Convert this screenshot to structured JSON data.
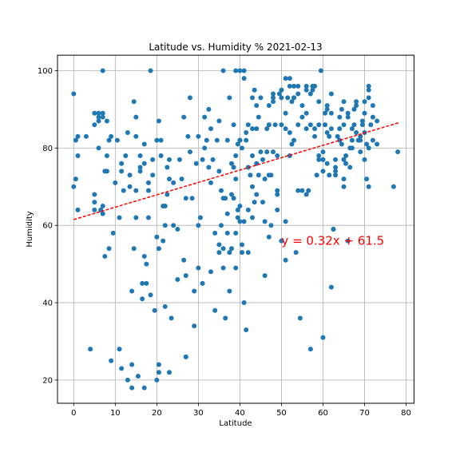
{
  "chart_data": {
    "type": "scatter",
    "title": "Latitude vs. Humidity % 2021-02-13",
    "xlabel": "Latitude",
    "ylabel": "Humidity",
    "xlim": [
      -3.9,
      81.9
    ],
    "ylim": [
      14,
      104
    ],
    "xticks": [
      0,
      10,
      20,
      30,
      40,
      50,
      60,
      70,
      80
    ],
    "yticks": [
      20,
      40,
      60,
      80,
      100
    ],
    "grid": true,
    "colors": {
      "points": "#1f77b4",
      "regression": "#ff0000",
      "annotation": "#ff0000"
    },
    "regression": {
      "slope": 0.32,
      "intercept": 61.5,
      "x_range": [
        0,
        78.2
      ],
      "style": "dashed"
    },
    "annotation": {
      "text": "y = 0.32x + 61.5",
      "x": 50,
      "y": 55
    },
    "points": [
      [
        0,
        94
      ],
      [
        0,
        70
      ],
      [
        0.5,
        72
      ],
      [
        0.5,
        82
      ],
      [
        1,
        64
      ],
      [
        1,
        78
      ],
      [
        1,
        83
      ],
      [
        3,
        83
      ],
      [
        4,
        28
      ],
      [
        5,
        64
      ],
      [
        5,
        66
      ],
      [
        5,
        68
      ],
      [
        5,
        89
      ],
      [
        5,
        86
      ],
      [
        6,
        88
      ],
      [
        6,
        87
      ],
      [
        6,
        80
      ],
      [
        6,
        89
      ],
      [
        7,
        89
      ],
      [
        7,
        88
      ],
      [
        6.5,
        64
      ],
      [
        7,
        65
      ],
      [
        7,
        63
      ],
      [
        7,
        100
      ],
      [
        7.5,
        74
      ],
      [
        7.5,
        52
      ],
      [
        8,
        74
      ],
      [
        8,
        87
      ],
      [
        8,
        78
      ],
      [
        8.5,
        82
      ],
      [
        8.5,
        54
      ],
      [
        9,
        25
      ],
      [
        9,
        83
      ],
      [
        9.5,
        58
      ],
      [
        10,
        71
      ],
      [
        10.5,
        82
      ],
      [
        11,
        28
      ],
      [
        11,
        62
      ],
      [
        11.5,
        23
      ],
      [
        11.5,
        74
      ],
      [
        11.5,
        76
      ],
      [
        12,
        69
      ],
      [
        12.5,
        78
      ],
      [
        13,
        84
      ],
      [
        13,
        20
      ],
      [
        13.5,
        73
      ],
      [
        13.5,
        70
      ],
      [
        14,
        43
      ],
      [
        14,
        18
      ],
      [
        14,
        24
      ],
      [
        14.5,
        54
      ],
      [
        14.5,
        92
      ],
      [
        15,
        88
      ],
      [
        15,
        83
      ],
      [
        15,
        69
      ],
      [
        15,
        62
      ],
      [
        15.5,
        21
      ],
      [
        16,
        74
      ],
      [
        16,
        78
      ],
      [
        16,
        75
      ],
      [
        16.5,
        45
      ],
      [
        16.5,
        41
      ],
      [
        17,
        18
      ],
      [
        17,
        81
      ],
      [
        17,
        76
      ],
      [
        17,
        52
      ],
      [
        17.5,
        50
      ],
      [
        17.5,
        45
      ],
      [
        18,
        71
      ],
      [
        18,
        69
      ],
      [
        18,
        62
      ],
      [
        18.5,
        42
      ],
      [
        18.5,
        100
      ],
      [
        19,
        77
      ],
      [
        19,
        73
      ],
      [
        19.5,
        38
      ],
      [
        20,
        57
      ],
      [
        20,
        20
      ],
      [
        20,
        82
      ],
      [
        20.5,
        22
      ],
      [
        20.5,
        24
      ],
      [
        20.5,
        54
      ],
      [
        20.5,
        87
      ],
      [
        21,
        82
      ],
      [
        21,
        78
      ],
      [
        21.5,
        65
      ],
      [
        21.5,
        56
      ],
      [
        22,
        39
      ],
      [
        22,
        65
      ],
      [
        22,
        60
      ],
      [
        22.5,
        75
      ],
      [
        22.5,
        68
      ],
      [
        23,
        22
      ],
      [
        23,
        77
      ],
      [
        23,
        72
      ],
      [
        23.5,
        36
      ],
      [
        24,
        60
      ],
      [
        24,
        71
      ],
      [
        25,
        46
      ],
      [
        25,
        59
      ],
      [
        25.5,
        77
      ],
      [
        26,
        72
      ],
      [
        26.5,
        88
      ],
      [
        26.5,
        51
      ],
      [
        27,
        47
      ],
      [
        27,
        67
      ],
      [
        27,
        26
      ],
      [
        27,
        26
      ],
      [
        27.5,
        83
      ],
      [
        28,
        93
      ],
      [
        28,
        79
      ],
      [
        28.5,
        67
      ],
      [
        29,
        43
      ],
      [
        29,
        34
      ],
      [
        29.5,
        76
      ],
      [
        30,
        83
      ],
      [
        30,
        60
      ],
      [
        30,
        49
      ],
      [
        30.5,
        62
      ],
      [
        31,
        77
      ],
      [
        31,
        45
      ],
      [
        31.5,
        88
      ],
      [
        31.5,
        80
      ],
      [
        32,
        82
      ],
      [
        32.5,
        90
      ],
      [
        32.5,
        75
      ],
      [
        33,
        71
      ],
      [
        33,
        85
      ],
      [
        33,
        48
      ],
      [
        33.5,
        77
      ],
      [
        34,
        38
      ],
      [
        34,
        58
      ],
      [
        34.5,
        82
      ],
      [
        35,
        87
      ],
      [
        35,
        53
      ],
      [
        35,
        74
      ],
      [
        35,
        55
      ],
      [
        35.5,
        69
      ],
      [
        35.5,
        60
      ],
      [
        36,
        67
      ],
      [
        36,
        54
      ],
      [
        36,
        49
      ],
      [
        36,
        100
      ],
      [
        36.5,
        36
      ],
      [
        36.5,
        67
      ],
      [
        37,
        82
      ],
      [
        37,
        63
      ],
      [
        37,
        58
      ],
      [
        37.5,
        93
      ],
      [
        37.5,
        53
      ],
      [
        37.5,
        43
      ],
      [
        38,
        76
      ],
      [
        38,
        68
      ],
      [
        38,
        54
      ],
      [
        38.5,
        86
      ],
      [
        38.5,
        75
      ],
      [
        38.5,
        67
      ],
      [
        39,
        58
      ],
      [
        39,
        72
      ],
      [
        39,
        100
      ],
      [
        39,
        49
      ],
      [
        39,
        78
      ],
      [
        39.5,
        64
      ],
      [
        39.5,
        62
      ],
      [
        39.5,
        81
      ],
      [
        40,
        82
      ],
      [
        40,
        65
      ],
      [
        40,
        100
      ],
      [
        40,
        82
      ],
      [
        40,
        61
      ],
      [
        40.5,
        55
      ],
      [
        40.5,
        53
      ],
      [
        40.5,
        80
      ],
      [
        41,
        100
      ],
      [
        41,
        61
      ],
      [
        41,
        40
      ],
      [
        41,
        98
      ],
      [
        41.5,
        82
      ],
      [
        41.5,
        33
      ],
      [
        41.5,
        84
      ],
      [
        42,
        86
      ],
      [
        42,
        75
      ],
      [
        42,
        53
      ],
      [
        42,
        64
      ],
      [
        42.5,
        73
      ],
      [
        43,
        62
      ],
      [
        43,
        78
      ],
      [
        43,
        85
      ],
      [
        43,
        70
      ],
      [
        43,
        93
      ],
      [
        43.5,
        95
      ],
      [
        43.5,
        66
      ],
      [
        44,
        68
      ],
      [
        44,
        76
      ],
      [
        44,
        91
      ],
      [
        44,
        85
      ],
      [
        44.5,
        73
      ],
      [
        44.5,
        88
      ],
      [
        45,
        79
      ],
      [
        45,
        93
      ],
      [
        45.5,
        77
      ],
      [
        45.5,
        66
      ],
      [
        46,
        47
      ],
      [
        46,
        72
      ],
      [
        46,
        61
      ],
      [
        46.5,
        85
      ],
      [
        46.5,
        79
      ],
      [
        47,
        73
      ],
      [
        47,
        91
      ],
      [
        47,
        86
      ],
      [
        47,
        57
      ],
      [
        47.5,
        73
      ],
      [
        47.5,
        60
      ],
      [
        48,
        94
      ],
      [
        48,
        93
      ],
      [
        48,
        79
      ],
      [
        48,
        92
      ],
      [
        48.5,
        86
      ],
      [
        49,
        64
      ],
      [
        49,
        68
      ],
      [
        49,
        69
      ],
      [
        49,
        78
      ],
      [
        49.5,
        94
      ],
      [
        50,
        86
      ],
      [
        50,
        93
      ],
      [
        50,
        95
      ],
      [
        50,
        56
      ],
      [
        51,
        51
      ],
      [
        51,
        61
      ],
      [
        51,
        89
      ],
      [
        51,
        98
      ],
      [
        51,
        85
      ],
      [
        51.5,
        93
      ],
      [
        52,
        96
      ],
      [
        52,
        78
      ],
      [
        52,
        98
      ],
      [
        52,
        84
      ],
      [
        52.5,
        92
      ],
      [
        52.5,
        81
      ],
      [
        53,
        96
      ],
      [
        53,
        93
      ],
      [
        53,
        93
      ],
      [
        53,
        82
      ],
      [
        53.5,
        53
      ],
      [
        54,
        86
      ],
      [
        54,
        69
      ],
      [
        54,
        94
      ],
      [
        54,
        96
      ],
      [
        54.5,
        36
      ],
      [
        55,
        69
      ],
      [
        55,
        91
      ],
      [
        55,
        88
      ],
      [
        56,
        68
      ],
      [
        56,
        95
      ],
      [
        56,
        96
      ],
      [
        56,
        85
      ],
      [
        56,
        89
      ],
      [
        56.5,
        69
      ],
      [
        57,
        86
      ],
      [
        57,
        94
      ],
      [
        57,
        28
      ],
      [
        57.5,
        96
      ],
      [
        57.5,
        95
      ],
      [
        58,
        96
      ],
      [
        58,
        85
      ],
      [
        58,
        83
      ],
      [
        58.5,
        73
      ],
      [
        59,
        86
      ],
      [
        59,
        92
      ],
      [
        59,
        78
      ],
      [
        59,
        77
      ],
      [
        59.5,
        100
      ],
      [
        60,
        77
      ],
      [
        60,
        79
      ],
      [
        60,
        31
      ],
      [
        60,
        74
      ],
      [
        60,
        77
      ],
      [
        60.5,
        86
      ],
      [
        60.5,
        89
      ],
      [
        61,
        84
      ],
      [
        61,
        90
      ],
      [
        61,
        91
      ],
      [
        61,
        76
      ],
      [
        61.5,
        73
      ],
      [
        61.5,
        83
      ],
      [
        62,
        85
      ],
      [
        62,
        89
      ],
      [
        62,
        94
      ],
      [
        62,
        44
      ],
      [
        62.5,
        59
      ],
      [
        62.5,
        59
      ],
      [
        63,
        73
      ],
      [
        63,
        75
      ],
      [
        63,
        74
      ],
      [
        63,
        77
      ],
      [
        63.5,
        83
      ],
      [
        64,
        85
      ],
      [
        64,
        88
      ],
      [
        64,
        82
      ],
      [
        64.5,
        90
      ],
      [
        64.5,
        81
      ],
      [
        65,
        77
      ],
      [
        65,
        92
      ],
      [
        65,
        70
      ],
      [
        65,
        72
      ],
      [
        65,
        86
      ],
      [
        65.5,
        76
      ],
      [
        65.5,
        78
      ],
      [
        66,
        89
      ],
      [
        66,
        56
      ],
      [
        66,
        88
      ],
      [
        66.5,
        75
      ],
      [
        66.5,
        80
      ],
      [
        67,
        80
      ],
      [
        67,
        82
      ],
      [
        67,
        85
      ],
      [
        67.5,
        90
      ],
      [
        67.5,
        86
      ],
      [
        68,
        84
      ],
      [
        68,
        91
      ],
      [
        68,
        92
      ],
      [
        68.5,
        82
      ],
      [
        69,
        82
      ],
      [
        69,
        83
      ],
      [
        69,
        79
      ],
      [
        69.5,
        87
      ],
      [
        69.5,
        86
      ],
      [
        70,
        89
      ],
      [
        70,
        92
      ],
      [
        70,
        77
      ],
      [
        70,
        84
      ],
      [
        70.5,
        81
      ],
      [
        70.5,
        72
      ],
      [
        71,
        95
      ],
      [
        71,
        93
      ],
      [
        71,
        96
      ],
      [
        71,
        80
      ],
      [
        71,
        70
      ],
      [
        71.5,
        86
      ],
      [
        72,
        91
      ],
      [
        72,
        88
      ],
      [
        72,
        82
      ],
      [
        73,
        81
      ],
      [
        73,
        87
      ],
      [
        77,
        70
      ],
      [
        78,
        79
      ]
    ]
  }
}
